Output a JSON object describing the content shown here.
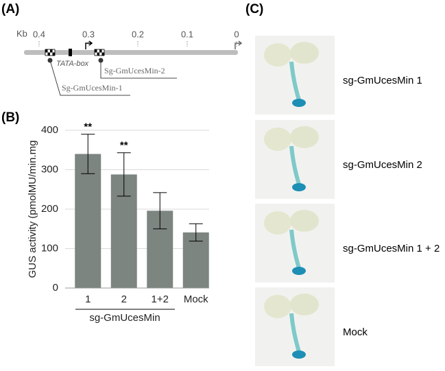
{
  "panels": {
    "a": "(A)",
    "b": "(B)",
    "c": "(C)"
  },
  "diagram": {
    "unit": "Kb",
    "scale_ticks": [
      0.4,
      0.3,
      0.2,
      0.1,
      0
    ],
    "tata_label": "TATA-box",
    "site_1": "Sg-GmUcesMin-1",
    "site_2": "Sg-GmUcesMin-2"
  },
  "chart_data": {
    "type": "bar",
    "ylabel": "GUS activity (pmolMU/min.mg",
    "categories": [
      "1",
      "2",
      "1+2",
      "Mock"
    ],
    "values": [
      340,
      288,
      196,
      141
    ],
    "errors": [
      50,
      55,
      46,
      22
    ],
    "significance": [
      "**",
      "**",
      null,
      null
    ],
    "group_label": "sg-GmUcesMin",
    "color": "#7c8580",
    "ylim": [
      0,
      400
    ],
    "yticks": [
      0,
      100,
      200,
      300,
      400
    ],
    "grid": true
  },
  "photos": {
    "labels": [
      "sg-GmUcesMin 1",
      "sg-GmUcesMin 2",
      "sg-GmUcesMin 1 + 2",
      "Mock"
    ]
  }
}
